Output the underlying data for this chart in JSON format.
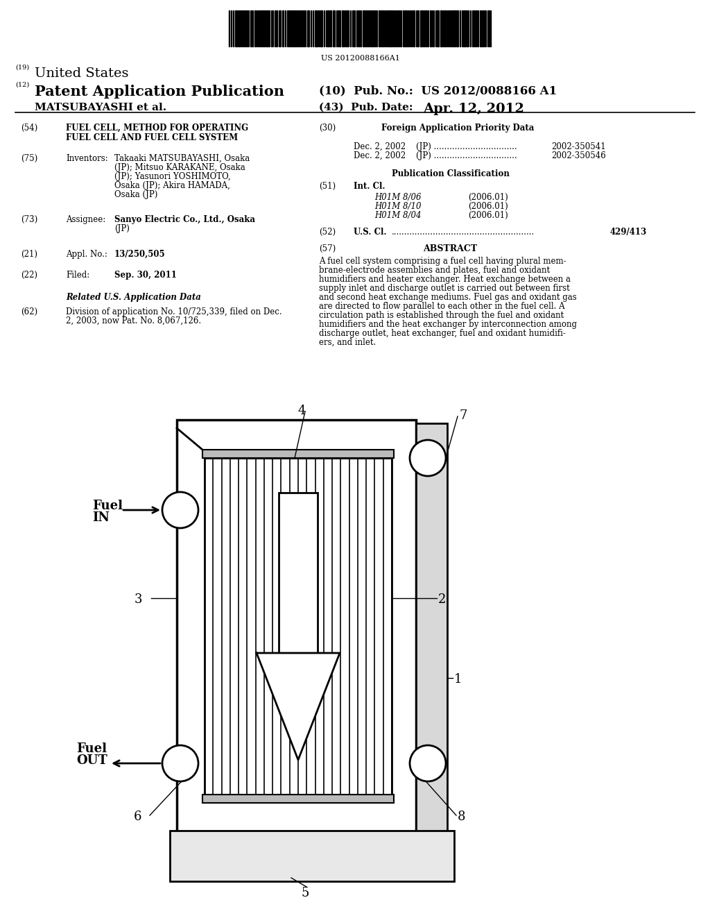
{
  "barcode_text": "US 20120088166A1",
  "bg_color": "#ffffff",
  "text_color": "#000000",
  "diagram_label_4": "4",
  "diagram_label_7": "7",
  "diagram_label_2": "2",
  "diagram_label_1": "1",
  "diagram_label_3": "3",
  "diagram_label_5": "5",
  "diagram_label_6": "6",
  "diagram_label_8": "8",
  "fuel_in_text1": "Fuel",
  "fuel_in_text2": "IN",
  "fuel_out_text1": "Fuel",
  "fuel_out_text2": "OUT"
}
